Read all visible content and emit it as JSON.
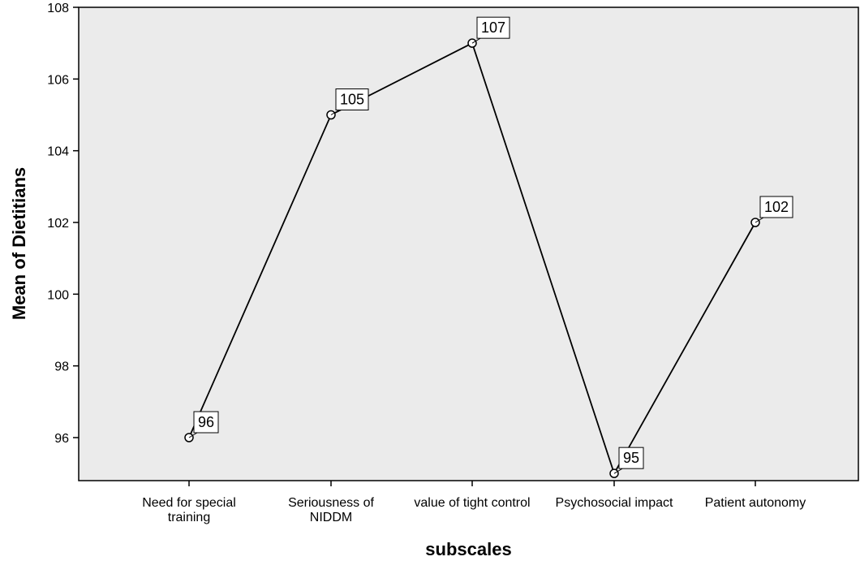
{
  "chart_data": {
    "type": "line",
    "categories": [
      [
        "Need for special",
        "training"
      ],
      [
        "Seriousness of",
        "NIDDM"
      ],
      [
        "value of tight control"
      ],
      [
        "Psychosocial impact"
      ],
      [
        "Patient autonomy"
      ]
    ],
    "values": [
      96,
      105,
      107,
      95,
      102
    ],
    "data_labels": [
      "96",
      "105",
      "107",
      "95",
      "102"
    ],
    "xlabel": "subscales",
    "ylabel": "Mean of Dietitians",
    "ylim": [
      94.8,
      108
    ],
    "yticks": [
      96,
      98,
      100,
      102,
      104,
      106,
      108
    ],
    "grid": false,
    "colors": {
      "plot_background": "#ebebeb",
      "line": "#000000",
      "marker_fill": "#ffffff"
    }
  }
}
